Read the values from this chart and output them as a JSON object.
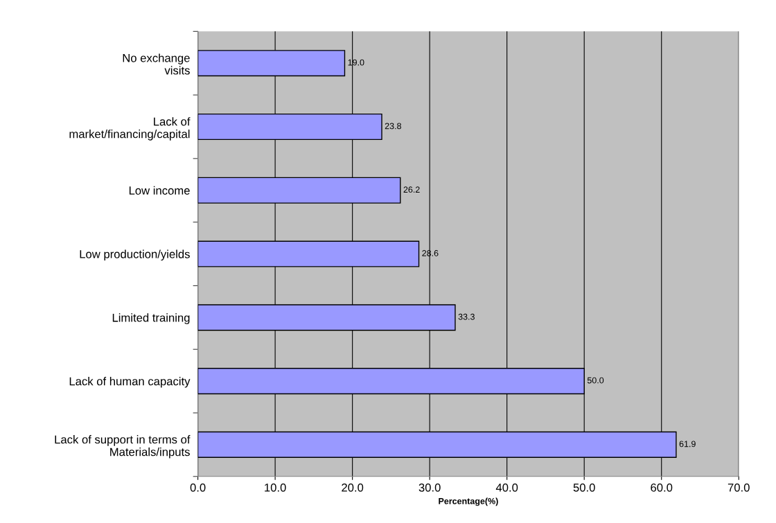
{
  "chart_data": {
    "type": "bar",
    "orientation": "horizontal",
    "categories": [
      "No exchange\nvisits",
      "Lack of\nmarket/financing/capital",
      "Low income",
      "Low production/yields",
      "Limited training",
      "Lack of human capacity",
      "Lack of support in terms of\nMaterials/inputs"
    ],
    "values": [
      19.0,
      23.8,
      26.2,
      28.6,
      33.3,
      50.0,
      61.9
    ],
    "value_labels": [
      "19.0",
      "23.8",
      "26.2",
      "28.6",
      "33.3",
      "50.0",
      "61.9"
    ],
    "color": "#9999ff",
    "xlabel": "Percentage(%)",
    "xlim": [
      0,
      70
    ],
    "xticks": [
      {
        "value": 0,
        "label": "0.0"
      },
      {
        "value": 10,
        "label": "10.0"
      },
      {
        "value": 20,
        "label": "20.0"
      },
      {
        "value": 30,
        "label": "30.0"
      },
      {
        "value": 40,
        "label": "40.0"
      },
      {
        "value": 50,
        "label": "50.0"
      },
      {
        "value": 60,
        "label": "60.0"
      },
      {
        "value": 70,
        "label": "70.0"
      }
    ],
    "grid": "x",
    "legend": false
  }
}
